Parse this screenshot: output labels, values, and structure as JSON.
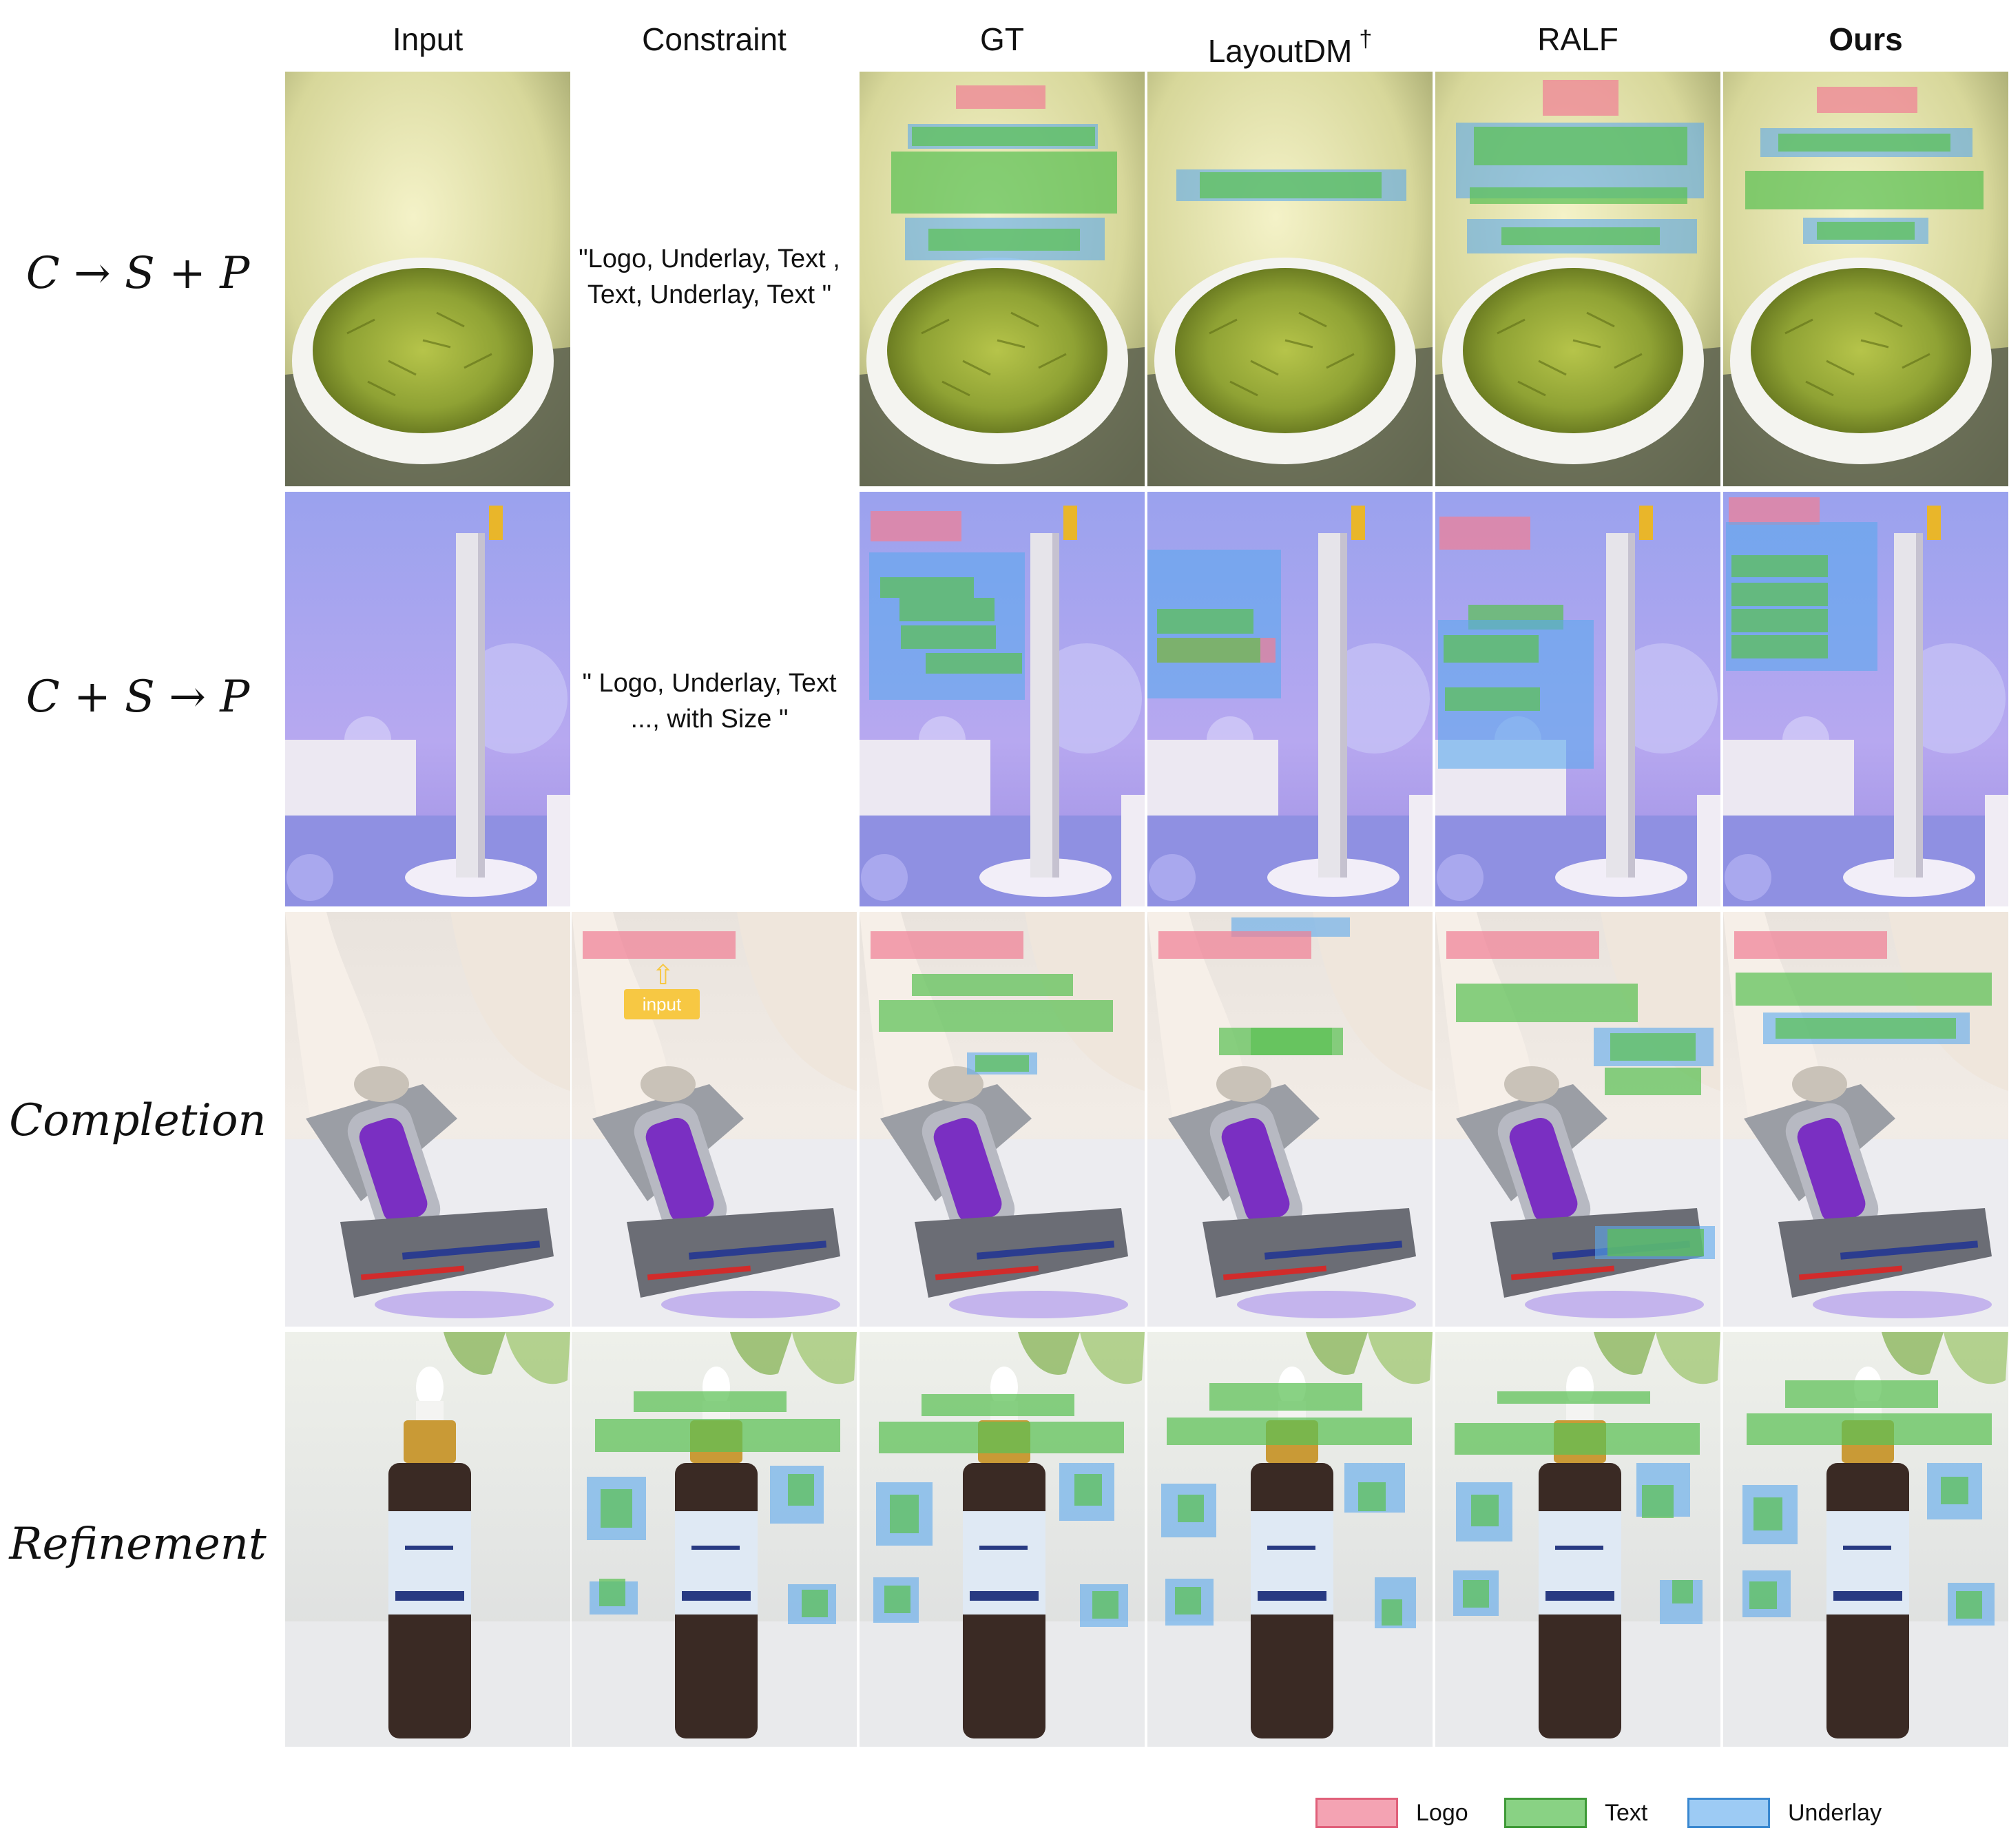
{
  "columns": [
    "Input",
    "Constraint",
    "GT",
    "LayoutDM",
    "RALF",
    "Ours"
  ],
  "dagger_mark": "†",
  "rows": [
    {
      "label": "C → S + P",
      "constraint": "\"Logo, Underlay, Text ,\nText, Underlay, Text \""
    },
    {
      "label": "C + S → P",
      "constraint": "\" Logo, Underlay, Text\n..., with Size \""
    },
    {
      "label": "Completion",
      "input_tag": "input"
    },
    {
      "label": "Refinement"
    }
  ],
  "legend": [
    {
      "name": "Logo",
      "color": "#f08096"
    },
    {
      "name": "Text",
      "color": "#5cc054"
    },
    {
      "name": "Underlay",
      "color": "#5ca8ec"
    }
  ]
}
